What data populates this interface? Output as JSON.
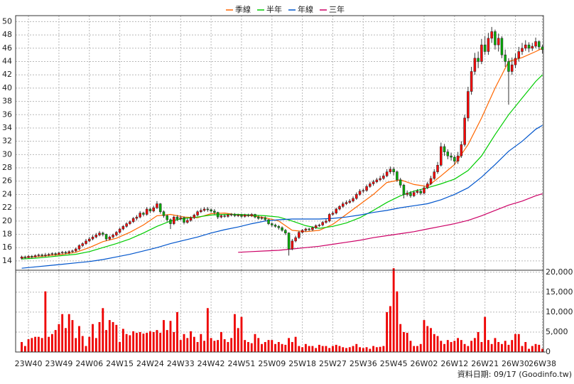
{
  "chart_data": [
    {
      "type": "candlestick",
      "legend": "top",
      "grid": true,
      "up_color": "#ff0000",
      "down_color": "#00b000",
      "xlim": [
        -1.8,
        154.3
      ],
      "ylim": [
        12.6,
        50.9
      ],
      "yticks": [
        14,
        16,
        18,
        20,
        22,
        24,
        26,
        28,
        30,
        32,
        34,
        36,
        38,
        40,
        42,
        44,
        46,
        48,
        50
      ],
      "open": [
        14.4,
        14.6,
        14.5,
        14.7,
        14.6,
        14.8,
        14.9,
        14.8,
        14.9,
        15.0,
        15.1,
        15.0,
        15.2,
        15.3,
        15.2,
        15.4,
        15.5,
        15.8,
        16.3,
        16.6,
        17.0,
        17.3,
        17.6,
        17.9,
        18.2,
        18.0,
        17.3,
        17.6,
        17.9,
        18.3,
        18.8,
        19.2,
        19.6,
        19.9,
        20.4,
        20.6,
        21.2,
        21.0,
        21.8,
        21.5,
        22.0,
        22.6,
        21.4,
        20.8,
        20.2,
        19.6,
        20.6,
        20.3,
        20.5,
        19.8,
        20.1,
        20.5,
        20.9,
        21.4,
        21.6,
        21.8,
        21.7,
        21.5,
        21.3,
        20.6,
        20.8,
        20.7,
        20.9,
        21.0,
        20.8,
        20.9,
        20.7,
        20.9,
        20.8,
        21.0,
        20.6,
        20.4,
        20.5,
        20.2,
        19.6,
        19.4,
        19.2,
        19.0,
        18.6,
        18.2,
        15.8,
        17.0,
        17.5,
        18.3,
        18.6,
        18.8,
        18.7,
        19.0,
        19.3,
        19.4,
        19.8,
        20.0,
        21.0,
        21.2,
        21.8,
        22.2,
        22.6,
        22.8,
        23.0,
        23.4,
        24.0,
        24.5,
        24.6,
        25.2,
        25.6,
        25.9,
        26.2,
        26.4,
        26.8,
        27.4,
        27.8,
        27.4,
        26.2,
        25.4,
        24.0,
        24.2,
        23.8,
        24.3,
        24.5,
        24.2,
        25.0,
        25.6,
        26.4,
        27.4,
        28.4,
        31.2,
        30.4,
        29.8,
        29.6,
        29.0,
        29.8,
        31.5,
        35.5,
        39.5,
        42.5,
        44.5,
        44.0,
        46.5,
        45.5,
        47.5,
        48.5,
        46.5,
        47.5,
        45.0,
        44.0,
        42.5,
        43.5,
        44.5,
        45.5,
        46.0,
        46.5,
        46.0,
        46.3,
        47.0,
        46.2
      ],
      "high": [
        14.8,
        14.8,
        14.9,
        14.9,
        15.0,
        15.1,
        15.1,
        15.2,
        15.2,
        15.3,
        15.3,
        15.4,
        15.5,
        15.5,
        15.6,
        15.7,
        16.0,
        16.5,
        16.8,
        17.3,
        17.6,
        17.9,
        18.2,
        18.5,
        18.4,
        18.1,
        17.8,
        18.1,
        18.5,
        19.0,
        19.4,
        19.8,
        20.1,
        20.6,
        20.9,
        21.5,
        21.4,
        22.1,
        22.0,
        22.3,
        23.0,
        22.7,
        21.6,
        21.0,
        20.4,
        20.8,
        20.9,
        20.8,
        20.7,
        20.4,
        20.7,
        21.1,
        21.6,
        21.9,
        22.1,
        22.1,
        21.9,
        21.8,
        21.4,
        21.0,
        21.0,
        21.1,
        21.2,
        21.2,
        21.1,
        21.1,
        21.1,
        21.1,
        21.2,
        21.1,
        20.8,
        20.7,
        20.7,
        20.3,
        19.8,
        19.6,
        19.4,
        19.2,
        18.8,
        18.3,
        17.3,
        17.8,
        18.5,
        18.8,
        19.0,
        19.0,
        19.2,
        19.5,
        19.6,
        20.0,
        20.3,
        21.2,
        21.5,
        22.0,
        22.4,
        22.9,
        23.1,
        23.3,
        23.7,
        24.3,
        24.8,
        24.9,
        25.5,
        25.9,
        26.2,
        26.5,
        26.8,
        27.2,
        27.8,
        28.2,
        28.1,
        27.6,
        26.5,
        25.6,
        24.6,
        24.5,
        24.6,
        24.8,
        24.8,
        25.3,
        25.9,
        26.8,
        27.8,
        28.9,
        31.8,
        31.6,
        30.8,
        30.3,
        29.9,
        30.4,
        32.0,
        36.0,
        40.2,
        43.2,
        45.3,
        45.5,
        47.4,
        47.8,
        48.3,
        49.2,
        48.8,
        48.2,
        47.8,
        45.8,
        44.5,
        44.6,
        45.2,
        46.2,
        46.8,
        47.2,
        46.9,
        46.8,
        47.6,
        47.2,
        46.5
      ],
      "low": [
        14.2,
        14.3,
        14.4,
        14.4,
        14.5,
        14.6,
        14.6,
        14.6,
        14.7,
        14.8,
        14.8,
        14.9,
        15.0,
        15.0,
        15.0,
        15.2,
        15.3,
        15.6,
        16.1,
        16.4,
        16.8,
        17.1,
        17.4,
        17.7,
        17.7,
        17.0,
        17.1,
        17.4,
        17.7,
        18.1,
        18.6,
        19.0,
        19.4,
        19.7,
        20.1,
        20.4,
        20.7,
        20.8,
        21.2,
        21.3,
        21.8,
        21.1,
        20.5,
        19.9,
        18.8,
        19.4,
        20.0,
        20.1,
        19.5,
        19.6,
        19.9,
        20.3,
        20.7,
        21.2,
        21.4,
        21.4,
        21.3,
        21.0,
        20.3,
        20.4,
        20.5,
        20.5,
        20.7,
        20.6,
        20.6,
        20.5,
        20.5,
        20.6,
        20.6,
        20.4,
        20.2,
        20.2,
        20.0,
        19.4,
        19.1,
        19.0,
        18.7,
        18.4,
        17.9,
        14.8,
        15.6,
        16.8,
        17.3,
        18.1,
        18.4,
        18.5,
        18.5,
        18.8,
        19.1,
        19.2,
        19.6,
        19.8,
        20.8,
        21.0,
        21.6,
        22.0,
        22.4,
        22.6,
        22.8,
        23.2,
        23.8,
        24.2,
        24.4,
        25.0,
        25.3,
        25.7,
        26.0,
        26.2,
        26.6,
        27.1,
        26.9,
        25.9,
        25.0,
        23.4,
        23.7,
        23.5,
        23.6,
        24.1,
        23.9,
        24.0,
        24.8,
        25.4,
        26.2,
        27.1,
        28.2,
        29.8,
        29.3,
        29.1,
        28.4,
        28.6,
        29.5,
        31.2,
        35.0,
        39.0,
        42.0,
        43.0,
        43.6,
        45.0,
        45.0,
        46.8,
        45.8,
        45.5,
        44.5,
        43.2,
        37.5,
        42.0,
        43.0,
        44.0,
        45.0,
        45.6,
        45.4,
        45.6,
        46.0,
        45.8,
        45.2
      ],
      "close": [
        14.6,
        14.5,
        14.7,
        14.6,
        14.8,
        14.9,
        14.8,
        14.9,
        15.0,
        15.1,
        15.0,
        15.2,
        15.3,
        15.2,
        15.4,
        15.5,
        15.8,
        16.3,
        16.6,
        17.0,
        17.3,
        17.6,
        17.9,
        18.2,
        18.0,
        17.3,
        17.6,
        17.9,
        18.3,
        18.8,
        19.2,
        19.6,
        19.9,
        20.4,
        20.6,
        21.2,
        21.0,
        21.8,
        21.5,
        22.0,
        22.6,
        21.4,
        20.8,
        20.2,
        19.6,
        20.6,
        20.3,
        20.5,
        19.8,
        20.1,
        20.5,
        20.9,
        21.4,
        21.6,
        21.8,
        21.7,
        21.5,
        21.3,
        20.6,
        20.8,
        20.7,
        20.9,
        21.0,
        20.8,
        20.9,
        20.7,
        20.9,
        20.8,
        21.0,
        20.6,
        20.4,
        20.5,
        20.2,
        19.6,
        19.4,
        19.2,
        19.0,
        18.6,
        18.2,
        15.8,
        17.0,
        17.5,
        18.3,
        18.6,
        18.8,
        18.7,
        19.0,
        19.3,
        19.4,
        19.8,
        20.0,
        21.0,
        21.2,
        21.8,
        22.2,
        22.6,
        22.8,
        23.0,
        23.4,
        24.0,
        24.5,
        24.6,
        25.2,
        25.6,
        25.9,
        26.2,
        26.4,
        26.8,
        27.4,
        27.8,
        27.4,
        26.2,
        25.4,
        24.0,
        24.2,
        23.8,
        24.3,
        24.5,
        24.2,
        25.0,
        25.6,
        26.4,
        27.4,
        28.4,
        31.2,
        30.4,
        29.8,
        29.6,
        29.0,
        29.8,
        31.5,
        35.5,
        39.5,
        42.5,
        44.5,
        44.0,
        46.5,
        45.5,
        47.5,
        48.5,
        46.5,
        47.5,
        45.0,
        44.0,
        42.5,
        43.5,
        44.5,
        45.5,
        46.0,
        46.5,
        46.0,
        46.3,
        47.0,
        46.2,
        45.8
      ],
      "series": [
        {
          "name": "季線",
          "color": "#ff6600",
          "x": [
            0,
            4,
            8,
            12,
            16,
            20,
            24,
            28,
            32,
            36,
            40,
            44,
            48,
            52,
            56,
            60,
            64,
            68,
            72,
            76,
            80,
            84,
            88,
            92,
            96,
            100,
            104,
            108,
            112,
            116,
            120,
            124,
            128,
            132,
            136,
            140,
            144,
            148,
            152,
            154
          ],
          "values": [
            14.5,
            14.6,
            14.8,
            15.0,
            15.3,
            16.0,
            16.9,
            17.4,
            18.3,
            19.4,
            20.8,
            21.0,
            20.6,
            20.5,
            21.1,
            21.2,
            20.9,
            20.8,
            20.5,
            20.0,
            18.6,
            18.4,
            18.6,
            19.5,
            21.0,
            22.5,
            24.0,
            25.8,
            26.2,
            25.5,
            25.2,
            26.8,
            28.5,
            31.5,
            35.5,
            40.0,
            44.0,
            44.6,
            45.5,
            46.0
          ]
        },
        {
          "name": "半年",
          "color": "#00cc00",
          "x": [
            0,
            4,
            8,
            12,
            16,
            20,
            24,
            28,
            32,
            36,
            40,
            44,
            48,
            52,
            56,
            60,
            64,
            68,
            72,
            76,
            80,
            84,
            88,
            92,
            96,
            100,
            104,
            108,
            112,
            116,
            120,
            124,
            128,
            132,
            136,
            140,
            144,
            148,
            152,
            154
          ],
          "values": [
            14.3,
            14.4,
            14.6,
            14.8,
            15.0,
            15.4,
            16.0,
            16.6,
            17.3,
            18.2,
            19.2,
            20.0,
            20.4,
            20.6,
            20.9,
            21.0,
            21.0,
            20.9,
            20.8,
            20.6,
            20.0,
            19.3,
            18.9,
            19.2,
            19.7,
            20.5,
            21.6,
            22.8,
            23.8,
            24.5,
            25.0,
            25.6,
            26.3,
            27.6,
            29.8,
            33.0,
            36.0,
            38.5,
            41.0,
            42.0
          ]
        },
        {
          "name": "年線",
          "color": "#0055cc",
          "x": [
            0,
            4,
            8,
            12,
            16,
            20,
            24,
            28,
            32,
            36,
            40,
            44,
            48,
            52,
            56,
            60,
            64,
            68,
            72,
            76,
            80,
            84,
            88,
            92,
            96,
            100,
            104,
            108,
            112,
            116,
            120,
            124,
            128,
            132,
            136,
            140,
            144,
            148,
            152,
            154
          ],
          "values": [
            12.9,
            13.1,
            13.3,
            13.5,
            13.7,
            13.9,
            14.2,
            14.6,
            15.0,
            15.5,
            16.0,
            16.6,
            17.1,
            17.6,
            18.2,
            18.7,
            19.1,
            19.6,
            20.0,
            20.2,
            20.3,
            20.3,
            20.3,
            20.4,
            20.6,
            20.9,
            21.3,
            21.6,
            22.0,
            22.3,
            22.6,
            23.2,
            24.0,
            25.0,
            26.6,
            28.5,
            30.5,
            32.0,
            33.8,
            34.4
          ]
        },
        {
          "name": "三年",
          "color": "#cc0066",
          "x": [
            64,
            68,
            72,
            76,
            80,
            84,
            88,
            92,
            96,
            100,
            104,
            108,
            112,
            116,
            120,
            124,
            128,
            132,
            136,
            140,
            144,
            148,
            152,
            154
          ],
          "values": [
            15.3,
            15.4,
            15.5,
            15.6,
            15.8,
            16.0,
            16.2,
            16.5,
            16.8,
            17.1,
            17.5,
            17.8,
            18.1,
            18.4,
            18.8,
            19.2,
            19.6,
            20.1,
            20.8,
            21.6,
            22.4,
            23.0,
            23.8,
            24.1
          ]
        }
      ]
    },
    {
      "type": "bar",
      "color": "#ee0000",
      "grid": true,
      "xlim": [
        -1.8,
        154.3
      ],
      "ylim": [
        0,
        20500
      ],
      "yticks": [
        0,
        {
          "value": 5000,
          "label": "5,000"
        },
        {
          "value": 10000,
          "label": "10,000"
        },
        {
          "value": 15000,
          "label": "15,000"
        },
        {
          "value": 20000,
          "label": "20,000"
        }
      ],
      "xticks": [
        {
          "value": 2,
          "label": "23W40"
        },
        {
          "value": 11,
          "label": "23W49"
        },
        {
          "value": 20,
          "label": "24W06"
        },
        {
          "value": 29,
          "label": "24W15"
        },
        {
          "value": 38,
          "label": "24W24"
        },
        {
          "value": 47,
          "label": "24W33"
        },
        {
          "value": 56,
          "label": "24W42"
        },
        {
          "value": 65,
          "label": "24W51"
        },
        {
          "value": 74,
          "label": "25W09"
        },
        {
          "value": 83,
          "label": "25W18"
        },
        {
          "value": 92,
          "label": "25W27"
        },
        {
          "value": 101,
          "label": "25W36"
        },
        {
          "value": 110,
          "label": "25W45"
        },
        {
          "value": 119,
          "label": "26W02"
        },
        {
          "value": 128,
          "label": "26W12"
        },
        {
          "value": 137,
          "label": "26W21"
        },
        {
          "value": 146,
          "label": "26W30"
        },
        {
          "value": 154,
          "label": "26W38"
        }
      ],
      "values": [
        2500,
        1500,
        3200,
        3500,
        3800,
        3800,
        3500,
        15200,
        3800,
        4500,
        5500,
        7000,
        9500,
        6000,
        9500,
        8000,
        3500,
        6500,
        4000,
        1500,
        3800,
        7000,
        3500,
        7500,
        11000,
        5500,
        8000,
        7500,
        6800,
        2500,
        5800,
        4500,
        4200,
        5200,
        4800,
        5000,
        4600,
        4800,
        5200,
        5000,
        5500,
        4800,
        8000,
        5500,
        7800,
        5000,
        10000,
        3000,
        4500,
        3500,
        5200,
        3800,
        2500,
        4500,
        2800,
        11000,
        3500,
        2800,
        3000,
        5000,
        3200,
        2500,
        3500,
        9500,
        6000,
        8800,
        3000,
        2500,
        2200,
        4500,
        3500,
        2000,
        2500,
        3000,
        3000,
        2000,
        2500,
        2000,
        1800,
        3500,
        2500,
        3800,
        1500,
        1200,
        2000,
        1500,
        1500,
        1000,
        1800,
        1500,
        1500,
        1000,
        1500,
        1800,
        1500,
        1200,
        1000,
        1200,
        1500,
        2000,
        1200,
        1000,
        1200,
        800,
        1500,
        1200,
        1300,
        1500,
        10000,
        11500,
        21000,
        15200,
        7000,
        5000,
        4800,
        2800,
        1500,
        1500,
        2000,
        8000,
        6500,
        6000,
        4500,
        4000,
        2800,
        2000,
        3000,
        2500,
        2800,
        3500,
        3000,
        2000,
        1500,
        2800,
        3500,
        5000,
        2500,
        8800,
        3000,
        2000,
        3500,
        2500,
        2000,
        2800,
        1800,
        3000,
        4500,
        4500,
        1500,
        2500,
        800,
        1500,
        2000,
        1800,
        800
      ]
    }
  ],
  "footer": "資料日期: 09/17 (Goodinfo.tw)"
}
